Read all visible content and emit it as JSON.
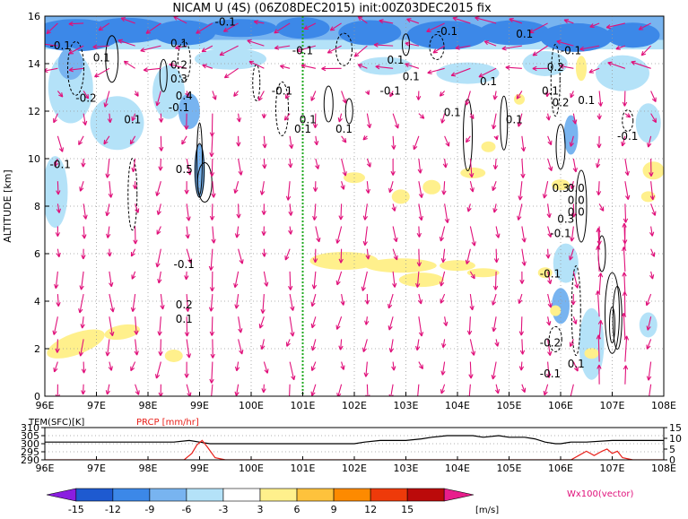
{
  "title": "NICAM U (4S) (06Z08DEC2015) init:00Z03DEC2015 fix",
  "chart_data": [
    {
      "type": "heatmap",
      "ylabel": "ALTITUDE [km]",
      "x_tick_labels": [
        "96E",
        "97E",
        "98E",
        "99E",
        "100E",
        "101E",
        "102E",
        "103E",
        "104E",
        "105E",
        "106E",
        "107E",
        "108E"
      ],
      "x_ticks": [
        96,
        97,
        98,
        99,
        100,
        101,
        102,
        103,
        104,
        105,
        106,
        107,
        108
      ],
      "xlim": [
        96,
        108
      ],
      "y_ticks": [
        0,
        2,
        4,
        6,
        8,
        10,
        12,
        14,
        16
      ],
      "ylim": [
        0,
        16
      ],
      "grid": true,
      "marker_line_lon": 101,
      "contour_labels": [
        {
          "text": "-0.1",
          "x": 96.3,
          "y": 14.6
        },
        {
          "text": "0.1",
          "x": 97.1,
          "y": 14.1
        },
        {
          "text": "-0.2",
          "x": 96.8,
          "y": 12.4
        },
        {
          "text": "0.1",
          "x": 97.7,
          "y": 11.5
        },
        {
          "text": "-0.1",
          "x": 96.3,
          "y": 9.6
        },
        {
          "text": "0.1",
          "x": 98.6,
          "y": 14.7
        },
        {
          "text": "0.2",
          "x": 98.6,
          "y": 13.8
        },
        {
          "text": "0.3",
          "x": 98.6,
          "y": 13.2
        },
        {
          "text": "0.4",
          "x": 98.7,
          "y": 12.5
        },
        {
          "text": "-0.1",
          "x": 98.6,
          "y": 12.0
        },
        {
          "text": "0.5",
          "x": 98.7,
          "y": 9.4
        },
        {
          "text": "-0.1",
          "x": 98.7,
          "y": 5.4
        },
        {
          "text": "0.2",
          "x": 98.7,
          "y": 3.7
        },
        {
          "text": "0.1",
          "x": 98.7,
          "y": 3.1
        },
        {
          "text": "-0.1",
          "x": 99.5,
          "y": 15.6
        },
        {
          "text": "-0.1",
          "x": 100.6,
          "y": 12.7
        },
        {
          "text": "-0.1",
          "x": 101.0,
          "y": 14.4
        },
        {
          "text": "0.1",
          "x": 101.1,
          "y": 11.5
        },
        {
          "text": "0.1",
          "x": 101.0,
          "y": 11.1
        },
        {
          "text": "0.1",
          "x": 101.8,
          "y": 11.1
        },
        {
          "text": "0.1",
          "x": 102.8,
          "y": 14.0
        },
        {
          "text": "0.1",
          "x": 103.1,
          "y": 13.3
        },
        {
          "text": "-0.1",
          "x": 102.7,
          "y": 12.7
        },
        {
          "text": "-0.1",
          "x": 103.8,
          "y": 15.2
        },
        {
          "text": "0.1",
          "x": 104.6,
          "y": 13.1
        },
        {
          "text": "0.1",
          "x": 103.9,
          "y": 11.8
        },
        {
          "text": "0.1",
          "x": 105.3,
          "y": 15.1
        },
        {
          "text": "0.1",
          "x": 105.1,
          "y": 11.5
        },
        {
          "text": "-0.1",
          "x": 106.2,
          "y": 14.4
        },
        {
          "text": "0.2",
          "x": 105.9,
          "y": 13.7
        },
        {
          "text": "0.1",
          "x": 105.8,
          "y": 12.7
        },
        {
          "text": "0.2",
          "x": 106.0,
          "y": 12.2
        },
        {
          "text": "0.1",
          "x": 106.5,
          "y": 12.3
        },
        {
          "text": "-0.1",
          "x": 107.3,
          "y": 10.8
        },
        {
          "text": "0.3",
          "x": 106.0,
          "y": 8.6
        },
        {
          "text": "0.0",
          "x": 106.3,
          "y": 8.6
        },
        {
          "text": "0.0",
          "x": 106.3,
          "y": 8.1
        },
        {
          "text": "0.3",
          "x": 106.1,
          "y": 7.3
        },
        {
          "text": "0.0",
          "x": 106.3,
          "y": 7.6
        },
        {
          "text": "-0.1",
          "x": 106.0,
          "y": 6.7
        },
        {
          "text": "-0.1",
          "x": 105.8,
          "y": 5.0
        },
        {
          "text": "-0.2",
          "x": 105.8,
          "y": 2.1
        },
        {
          "text": "-0.1",
          "x": 105.8,
          "y": 0.8
        },
        {
          "text": "0.1",
          "x": 106.3,
          "y": 1.2
        }
      ]
    },
    {
      "type": "line",
      "left_axis_label": "TEM(SFC)[K]",
      "right_axis_label": "PRCP [mm/hr]",
      "left_ticks": [
        290,
        295,
        300,
        305,
        310
      ],
      "left_tick_labels": [
        "290",
        "295",
        "300",
        "305",
        "310"
      ],
      "left_ylim": [
        290,
        310
      ],
      "right_ticks": [
        0,
        5,
        10,
        15
      ],
      "right_tick_labels": [
        "0",
        "5",
        "10",
        "15"
      ],
      "right_ylim": [
        0,
        15
      ],
      "x_tick_labels": [
        "96E",
        "97E",
        "98E",
        "99E",
        "100E",
        "101E",
        "102E",
        "103E",
        "104E",
        "105E",
        "106E",
        "107E",
        "108E"
      ],
      "series": [
        {
          "name": "TEM(SFC)[K]",
          "color": "#000000",
          "axis": "left",
          "x": [
            96.0,
            96.5,
            97.0,
            97.5,
            98.0,
            98.5,
            98.8,
            99.0,
            99.2,
            99.5,
            100.0,
            100.5,
            101.0,
            101.5,
            102.0,
            102.2,
            102.5,
            102.8,
            103.0,
            103.3,
            103.5,
            103.8,
            104.0,
            104.3,
            104.5,
            104.8,
            105.0,
            105.3,
            105.5,
            105.7,
            105.9,
            106.0,
            106.2,
            106.5,
            107.0,
            107.5,
            108.0
          ],
          "y": [
            301,
            301,
            301,
            301,
            301,
            301,
            302,
            301,
            300,
            300,
            300,
            300,
            300,
            300,
            300,
            301,
            302,
            302,
            302,
            303,
            304,
            305,
            305,
            305,
            304,
            305,
            304,
            304,
            303,
            301,
            300,
            300,
            301,
            301,
            302,
            302,
            302
          ]
        },
        {
          "name": "PRCP [mm/hr]",
          "color": "#e8201a",
          "axis": "right",
          "x": [
            96.0,
            98.7,
            98.85,
            98.95,
            99.05,
            99.15,
            99.3,
            99.5,
            106.0,
            106.2,
            106.35,
            106.5,
            106.65,
            106.8,
            106.9,
            107.0,
            107.1,
            107.2,
            107.4,
            108.0
          ],
          "y": [
            0,
            0,
            3,
            7,
            9,
            6,
            1,
            0,
            0,
            0,
            2,
            4,
            2,
            4,
            5,
            3,
            4,
            1,
            0,
            0
          ]
        }
      ]
    },
    {
      "type": "colorbar",
      "tick_labels": [
        "-15",
        "-12",
        "-9",
        "-6",
        "-3",
        "3",
        "6",
        "9",
        "12",
        "15"
      ],
      "unit": "[m/s]",
      "colors": [
        "#8a1ee0",
        "#1e5ad0",
        "#3c88e8",
        "#78b4f0",
        "#b4e2f8",
        "#ffffff",
        "#fff08c",
        "#fec23c",
        "#fd8a00",
        "#ee3a0a",
        "#bb0a0a",
        "#e81e8c"
      ],
      "vector_label": "Wx100(vector)"
    }
  ],
  "colors": {
    "vector": "#e0107a",
    "easterly_strong": "#3c88e8",
    "easterly_mid": "#78b4f0",
    "easterly_weak": "#b4e2f8",
    "westerly_weak": "#fff08c",
    "marker_line": "#22aa22"
  }
}
